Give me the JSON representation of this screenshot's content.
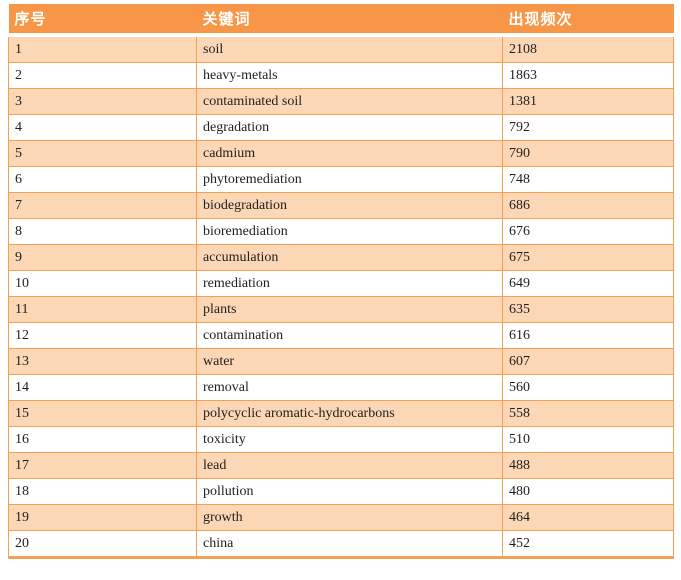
{
  "chart_data": {
    "type": "table",
    "title": "",
    "columns": [
      "序号",
      "关键词",
      "出现频次"
    ],
    "rows": [
      [
        "1",
        "soil",
        "2108"
      ],
      [
        "2",
        "heavy-metals",
        "1863"
      ],
      [
        "3",
        "contaminated soil",
        "1381"
      ],
      [
        "4",
        "degradation",
        "792"
      ],
      [
        "5",
        "cadmium",
        "790"
      ],
      [
        "6",
        "phytoremediation",
        "748"
      ],
      [
        "7",
        "biodegradation",
        "686"
      ],
      [
        "8",
        "bioremediation",
        "676"
      ],
      [
        "9",
        "accumulation",
        "675"
      ],
      [
        "10",
        "remediation",
        "649"
      ],
      [
        "11",
        "plants",
        "635"
      ],
      [
        "12",
        "contamination",
        "616"
      ],
      [
        "13",
        "water",
        "607"
      ],
      [
        "14",
        "removal",
        "560"
      ],
      [
        "15",
        "polycyclic aromatic-hydrocarbons",
        "558"
      ],
      [
        "16",
        "toxicity",
        "510"
      ],
      [
        "17",
        "lead",
        "488"
      ],
      [
        "18",
        "pollution",
        "480"
      ],
      [
        "19",
        "growth",
        "464"
      ],
      [
        "20",
        "china",
        "452"
      ]
    ],
    "layout": {
      "banding": "odd-data-rows-shaded",
      "legend": "none",
      "grid": "on"
    },
    "colors": {
      "header_bg": "#F79646",
      "header_text": "#FFFFFF",
      "band_row_bg": "#FBD7B5",
      "plain_row_bg": "#FFFFFF",
      "border": "#F2A053",
      "body_text": "#1F1F1F"
    }
  }
}
